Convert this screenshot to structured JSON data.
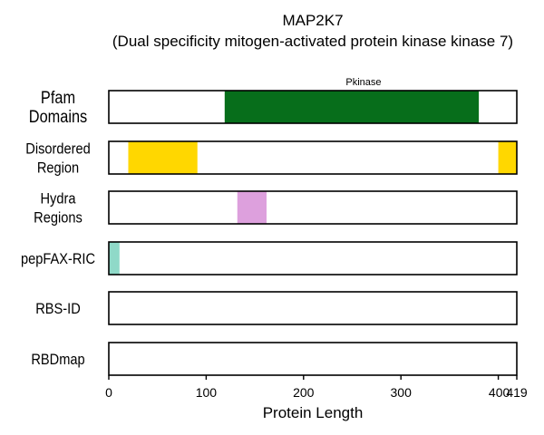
{
  "chart_data": {
    "type": "bar",
    "title": "MAP2K7",
    "subtitle": "(Dual specificity mitogen-activated protein kinase kinase 7)",
    "xlabel": "Protein Length",
    "xlim": [
      0,
      419
    ],
    "xticks": [
      0,
      100,
      200,
      300,
      400,
      419
    ],
    "grid": "vertical dashed at 100, 200, 300, 400",
    "tracks": [
      {
        "name": "Pfam Domains",
        "label_lines": [
          "Pfam",
          "Domains"
        ],
        "segments": [
          {
            "start": 119,
            "end": 380,
            "color": "#076e1b",
            "annotation": "Pkinase"
          }
        ]
      },
      {
        "name": "Disordered Region",
        "label_lines": [
          "Disordered",
          "Region"
        ],
        "segments": [
          {
            "start": 20,
            "end": 91,
            "color": "#ffd700"
          },
          {
            "start": 400,
            "end": 419,
            "color": "#ffd700"
          }
        ]
      },
      {
        "name": "Hydra Regions",
        "label_lines": [
          "Hydra",
          "Regions"
        ],
        "segments": [
          {
            "start": 132,
            "end": 162,
            "color": "#dda0dd"
          }
        ]
      },
      {
        "name": "pepFAX-RIC",
        "label_lines": [
          "pepFAX-RIC"
        ],
        "segments": [
          {
            "start": 0,
            "end": 11,
            "color": "#8fd9c8"
          }
        ]
      },
      {
        "name": "RBS-ID",
        "label_lines": [
          "RBS-ID"
        ],
        "segments": []
      },
      {
        "name": "RBDmap",
        "label_lines": [
          "RBDmap"
        ],
        "segments": []
      }
    ]
  }
}
